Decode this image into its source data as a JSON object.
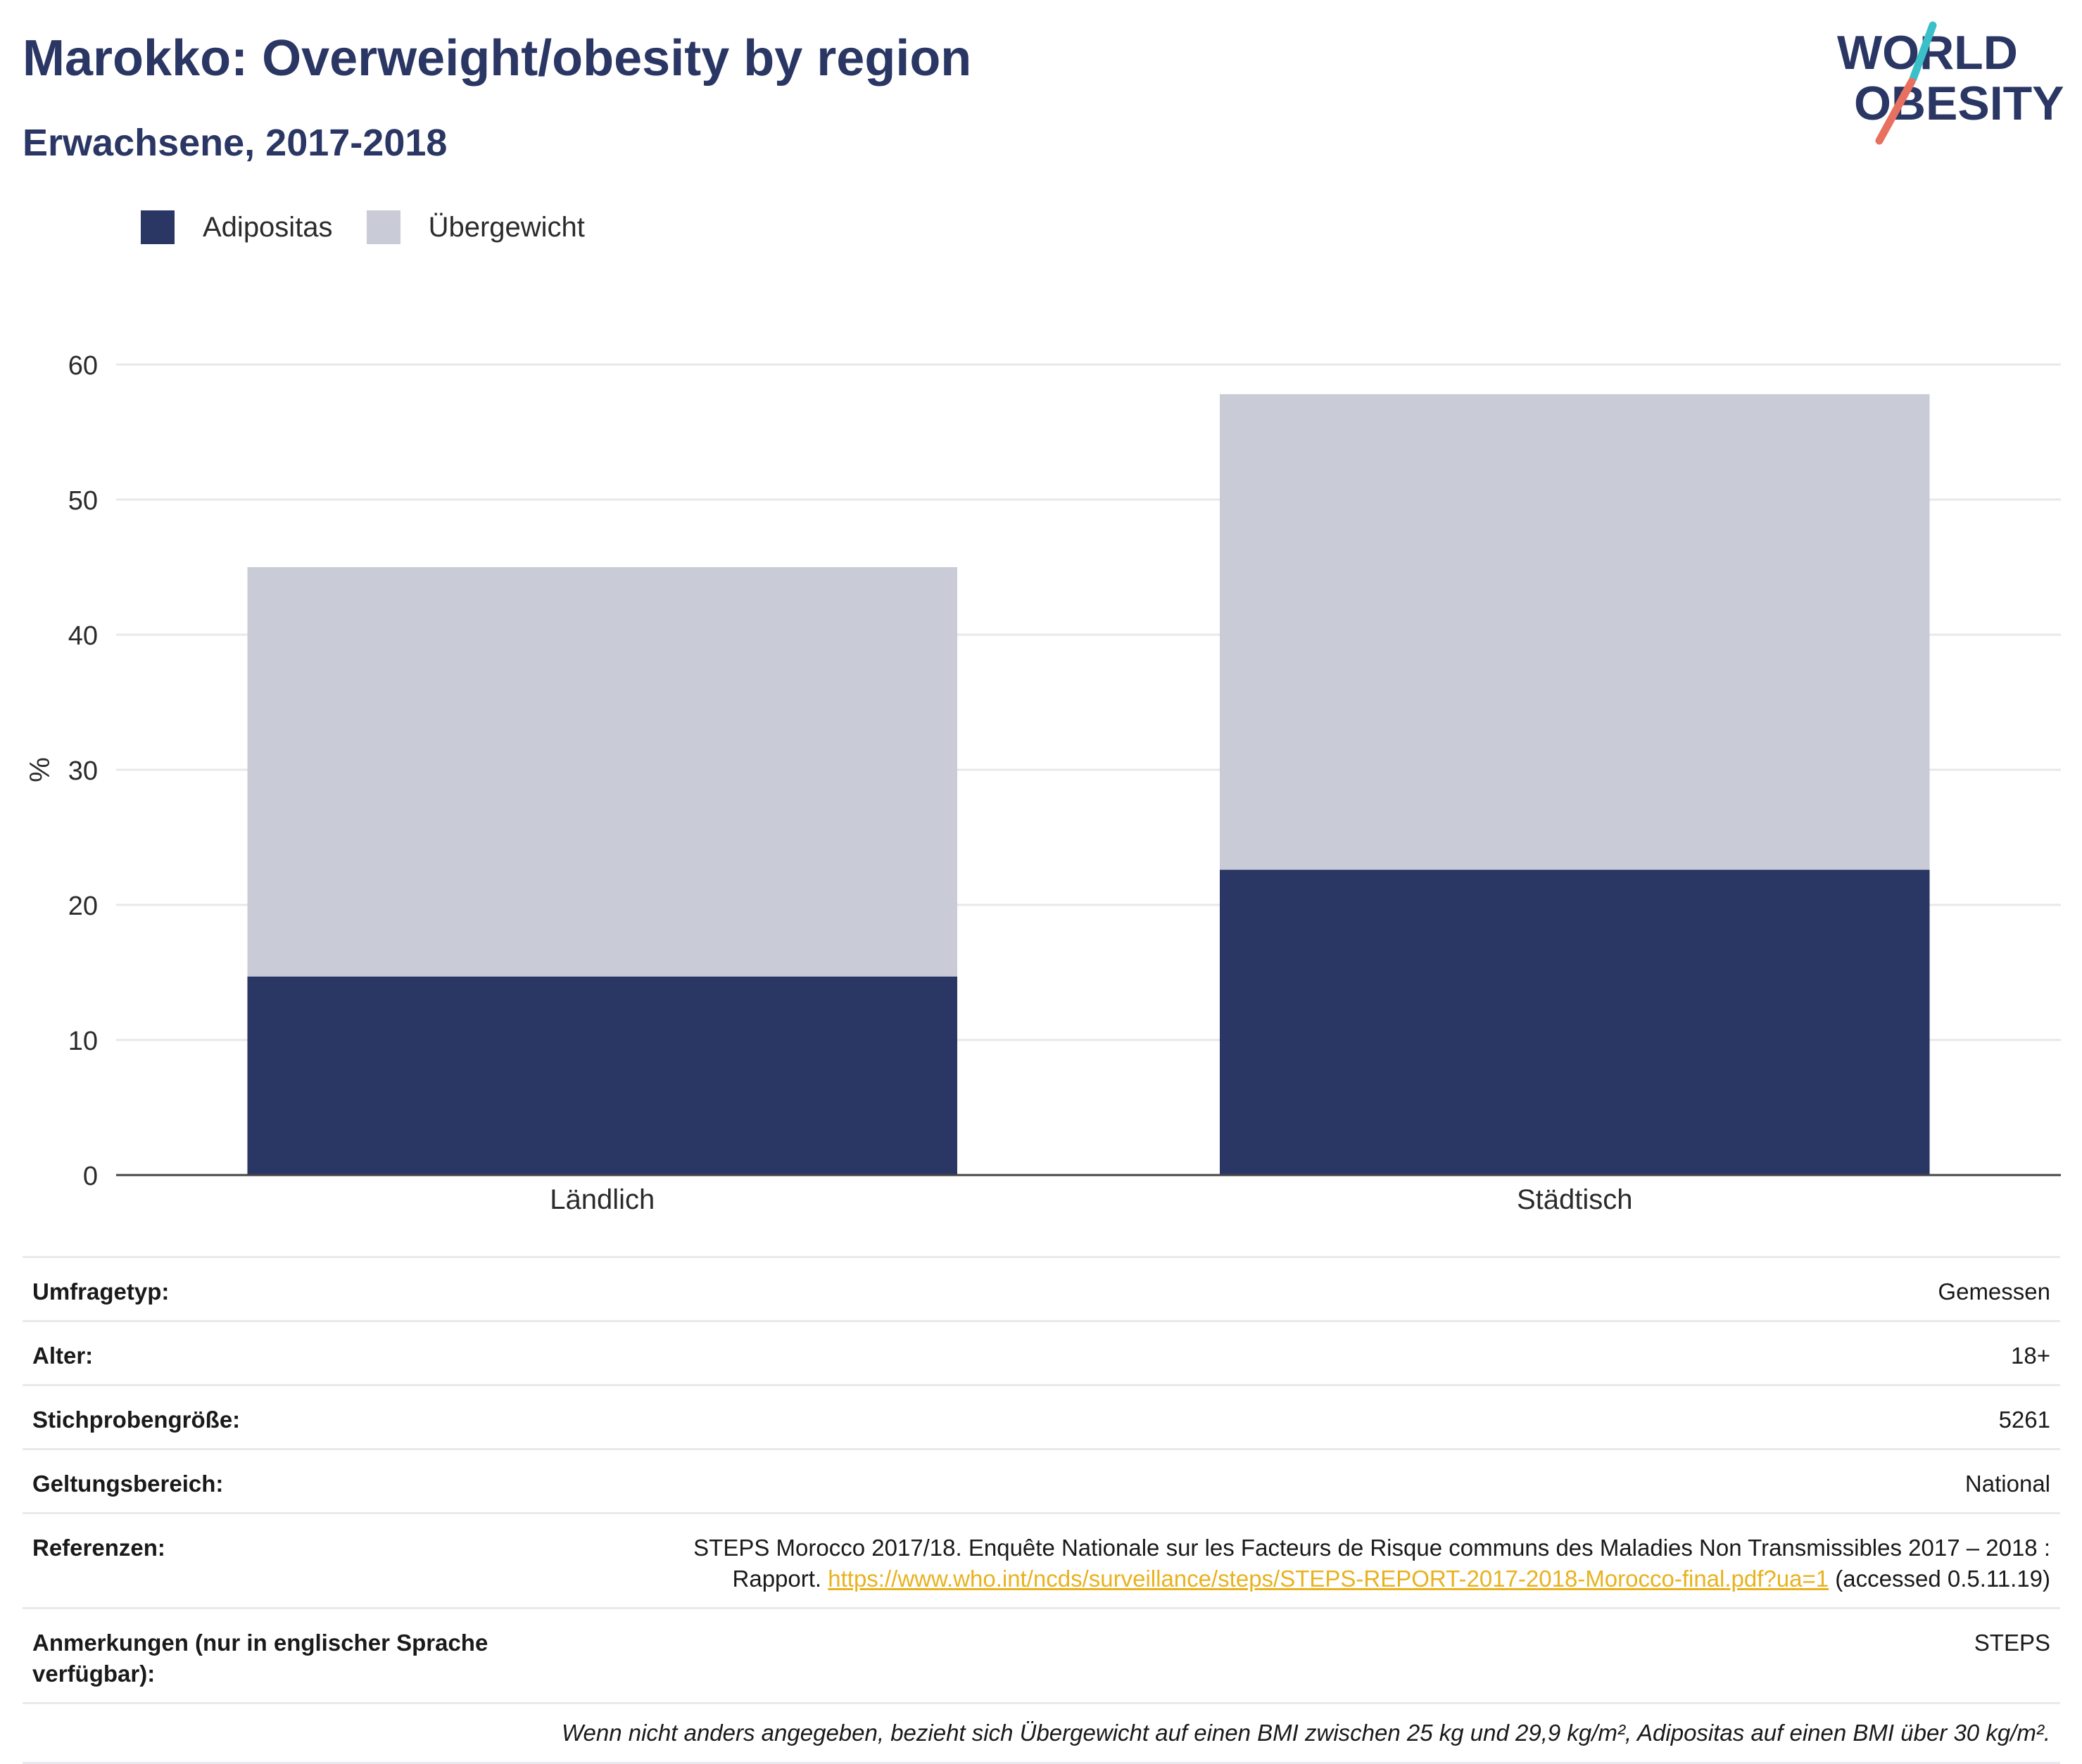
{
  "title": "Marokko: Overweight/obesity by region",
  "subtitle": "Erwachsene, 2017-2018",
  "logo": {
    "line1": "WORLD",
    "line2": "OBESITY"
  },
  "colors": {
    "title": "#2a3663",
    "obesity": "#2a3663",
    "overweight": "#c9ccd7",
    "link": "#e8b21f",
    "logo_text": "#2a3663",
    "logo_teal": "#3bbfc9",
    "logo_coral": "#e8705e"
  },
  "legend": [
    {
      "label": "Adipositas",
      "color": "#2a3663"
    },
    {
      "label": "Übergewicht",
      "color": "#c9ccd7"
    }
  ],
  "chart_data": {
    "type": "bar",
    "stacked": true,
    "categories": [
      "Ländlich",
      "Städtisch"
    ],
    "series": [
      {
        "name": "Adipositas",
        "values": [
          14.7,
          22.6
        ]
      },
      {
        "name": "Übergewicht",
        "values": [
          30.3,
          35.2
        ]
      }
    ],
    "ylabel": "%",
    "ylim": [
      0,
      60
    ],
    "yticks": [
      0,
      10,
      20,
      30,
      40,
      50,
      60
    ],
    "grid": true,
    "legend_position": "top-left"
  },
  "meta": [
    {
      "label": "Umfragetyp:",
      "value": "Gemessen"
    },
    {
      "label": "Alter:",
      "value": "18+"
    },
    {
      "label": "Stichprobengröße:",
      "value": "5261"
    },
    {
      "label": "Geltungsbereich:",
      "value": "National"
    }
  ],
  "references": {
    "label": "Referenzen:",
    "text1": "STEPS Morocco 2017/18. Enquête Nationale sur les Facteurs de Risque communs des Maladies Non Transmissibles 2017 – 2018 :",
    "text2": "Rapport.",
    "link": "https://www.who.int/ncds/surveillance/steps/STEPS-REPORT-2017-2018-Morocco-final.pdf?ua=1",
    "text3": "(accessed 0.5.11.19)"
  },
  "notes": {
    "label": "Anmerkungen (nur in englischer Sprache verfügbar):",
    "value": "STEPS"
  },
  "footnote": "Wenn nicht anders angegeben, bezieht sich Übergewicht auf einen BMI zwischen 25 kg und 29,9 kg/m², Adipositas auf einen BMI über 30 kg/m²."
}
